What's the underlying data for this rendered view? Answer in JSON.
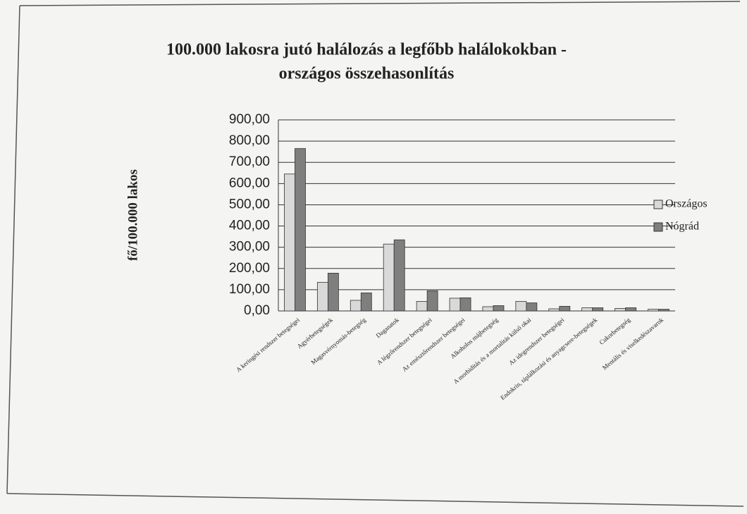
{
  "chart_data": {
    "type": "bar",
    "title": [
      "100.000 lakosra jutó halálozás a legfőbb halálokokban -",
      "országos összehasonlítás"
    ],
    "y_label": "fő/100.000 lakos",
    "categories": [
      "A keringési rendszer betegségei",
      "Agyérbetegségek",
      "Magasvérnyomás-betegség",
      "Daganatok",
      "A légzőrendszer betegségei",
      "Az emésztőrendszer betegségei",
      "Alkoholos májbetegség",
      "A morbiditás és a mortalitás külső okai",
      "Az idegrendszer betegségei",
      "Endokrin, táplálkozási és anyagcsere-betegségek",
      "Cukorbetegség",
      "Mentális és viselkedészavarok"
    ],
    "series": [
      {
        "name": "Országos",
        "color": "#d9d9d9",
        "values": [
          645,
          135,
          50,
          315,
          45,
          60,
          20,
          45,
          10,
          15,
          12,
          8
        ]
      },
      {
        "name": "Nógrád",
        "color": "#7f7f7f",
        "values": [
          765,
          178,
          85,
          335,
          95,
          62,
          25,
          38,
          22,
          15,
          15,
          8
        ]
      }
    ],
    "ylim": [
      0,
      900
    ],
    "yticks": [
      {
        "value": 0,
        "label": "0,00"
      },
      {
        "value": 100,
        "label": "100,00"
      },
      {
        "value": 200,
        "label": "200,00"
      },
      {
        "value": 300,
        "label": "300,00"
      },
      {
        "value": 400,
        "label": "400,00"
      },
      {
        "value": 500,
        "label": "500,00"
      },
      {
        "value": 600,
        "label": "600,00"
      },
      {
        "value": 700,
        "label": "700,00"
      },
      {
        "value": 800,
        "label": "800,00"
      },
      {
        "value": 900,
        "label": "900,00"
      }
    ],
    "grid": true,
    "legend": "right"
  }
}
